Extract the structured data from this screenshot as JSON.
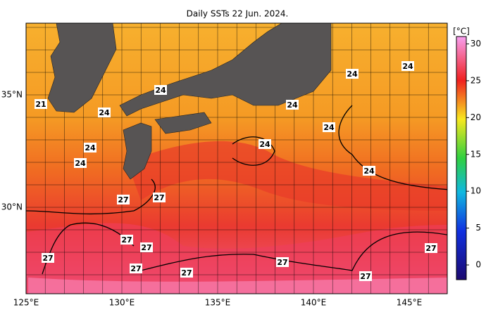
{
  "title": "Daily SSTs 22 Jun. 2024.",
  "x_labels": [
    "125°E",
    "130°E",
    "135°E",
    "140°E",
    "145°E"
  ],
  "y_labels": [
    "35°N",
    "30°N"
  ],
  "colorbar": {
    "label": "[°C]",
    "lim": [
      -2,
      31
    ],
    "ticks": [
      0,
      5,
      10,
      15,
      20,
      25,
      30
    ]
  },
  "contour_labels": [
    "21",
    "24",
    "24",
    "24",
    "24",
    "24",
    "24",
    "24",
    "24",
    "24",
    "24",
    "27",
    "27",
    "27",
    "27",
    "27",
    "27",
    "27",
    "27",
    "27",
    "27"
  ]
}
